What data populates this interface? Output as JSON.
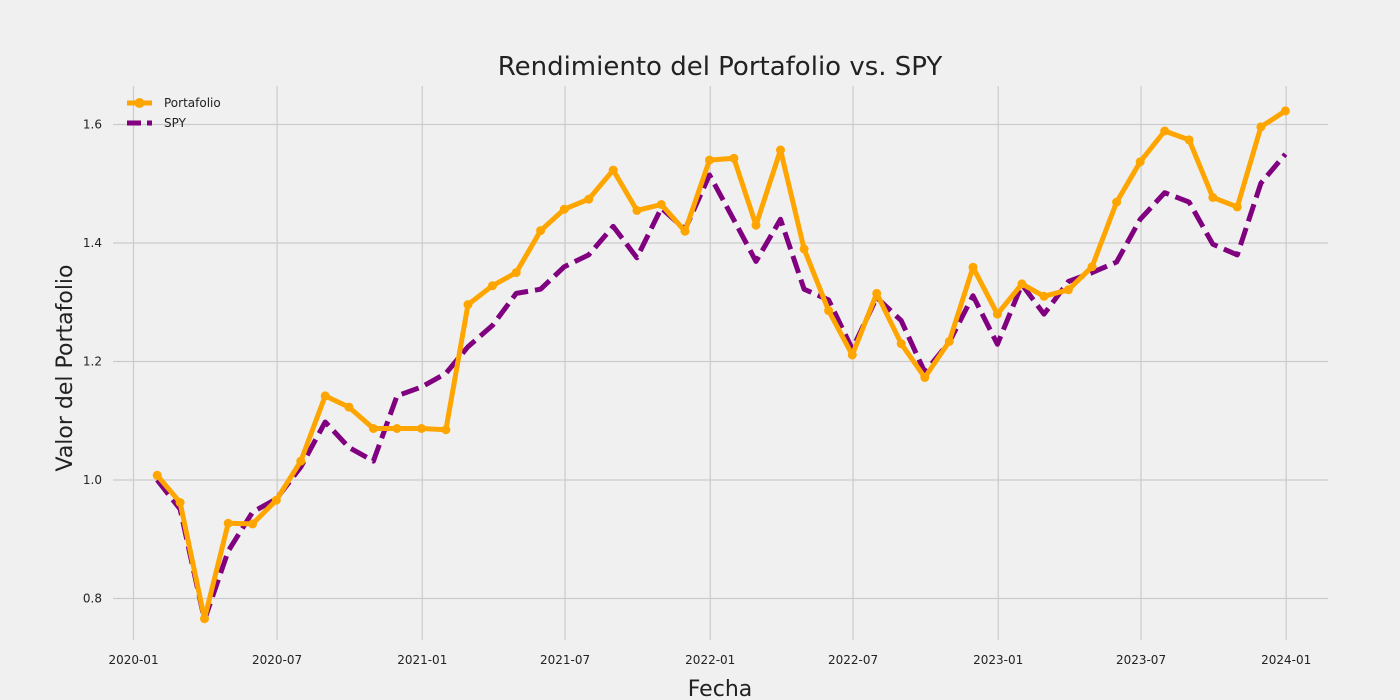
{
  "chart_data": {
    "type": "line",
    "title": "Rendimiento del Portafolio vs. SPY",
    "xlabel": "Fecha",
    "ylabel": "Valor del Portafolio",
    "xlim": [
      "2019-12-06",
      "2024-02-23"
    ],
    "ylim": [
      0.73,
      1.665
    ],
    "x_ticks": [
      "2020-01",
      "2020-07",
      "2021-01",
      "2021-07",
      "2022-01",
      "2022-07",
      "2023-01",
      "2023-07",
      "2024-01"
    ],
    "y_ticks": [
      "0.8",
      "1.0",
      "1.2",
      "1.4",
      "1.6"
    ],
    "grid": true,
    "legend_position": "top-left",
    "x": [
      "2020-01-31",
      "2020-02-29",
      "2020-03-31",
      "2020-04-30",
      "2020-05-31",
      "2020-06-30",
      "2020-07-31",
      "2020-08-31",
      "2020-09-30",
      "2020-10-31",
      "2020-11-30",
      "2020-12-31",
      "2021-01-31",
      "2021-02-28",
      "2021-03-31",
      "2021-04-30",
      "2021-05-31",
      "2021-06-30",
      "2021-07-31",
      "2021-08-31",
      "2021-09-30",
      "2021-10-31",
      "2021-11-30",
      "2021-12-31",
      "2022-01-31",
      "2022-02-28",
      "2022-03-31",
      "2022-04-30",
      "2022-05-31",
      "2022-06-30",
      "2022-07-31",
      "2022-08-31",
      "2022-09-30",
      "2022-10-31",
      "2022-11-30",
      "2022-12-31",
      "2023-01-31",
      "2023-02-28",
      "2023-03-31",
      "2023-04-30",
      "2023-05-31",
      "2023-06-30",
      "2023-07-31",
      "2023-08-31",
      "2023-09-30",
      "2023-10-31",
      "2023-11-30",
      "2023-12-31"
    ],
    "series": [
      {
        "name": "Portafolio",
        "color": "#ffa500",
        "style": "solid-with-markers",
        "values": [
          1.008,
          0.962,
          0.766,
          0.927,
          0.926,
          0.966,
          1.032,
          1.142,
          1.123,
          1.087,
          1.087,
          1.087,
          1.085,
          1.296,
          1.328,
          1.35,
          1.421,
          1.457,
          1.474,
          1.523,
          1.455,
          1.465,
          1.42,
          1.54,
          1.543,
          1.43,
          1.557,
          1.39,
          1.286,
          1.211,
          1.315,
          1.23,
          1.173,
          1.234,
          1.359,
          1.28,
          1.331,
          1.31,
          1.321,
          1.36,
          1.469,
          1.537,
          1.589,
          1.574,
          1.477,
          1.461,
          1.596,
          1.623
        ]
      },
      {
        "name": "SPY",
        "color": "#800080",
        "style": "dashed",
        "values": [
          1.0,
          0.951,
          0.764,
          0.88,
          0.946,
          0.968,
          1.022,
          1.098,
          1.055,
          1.032,
          1.142,
          1.157,
          1.18,
          1.225,
          1.261,
          1.315,
          1.322,
          1.36,
          1.38,
          1.428,
          1.375,
          1.459,
          1.423,
          1.515,
          1.439,
          1.369,
          1.44,
          1.322,
          1.304,
          1.221,
          1.308,
          1.269,
          1.182,
          1.233,
          1.311,
          1.229,
          1.33,
          1.28,
          1.335,
          1.35,
          1.368,
          1.44,
          1.485,
          1.469,
          1.398,
          1.38,
          1.501,
          1.55
        ]
      }
    ]
  }
}
